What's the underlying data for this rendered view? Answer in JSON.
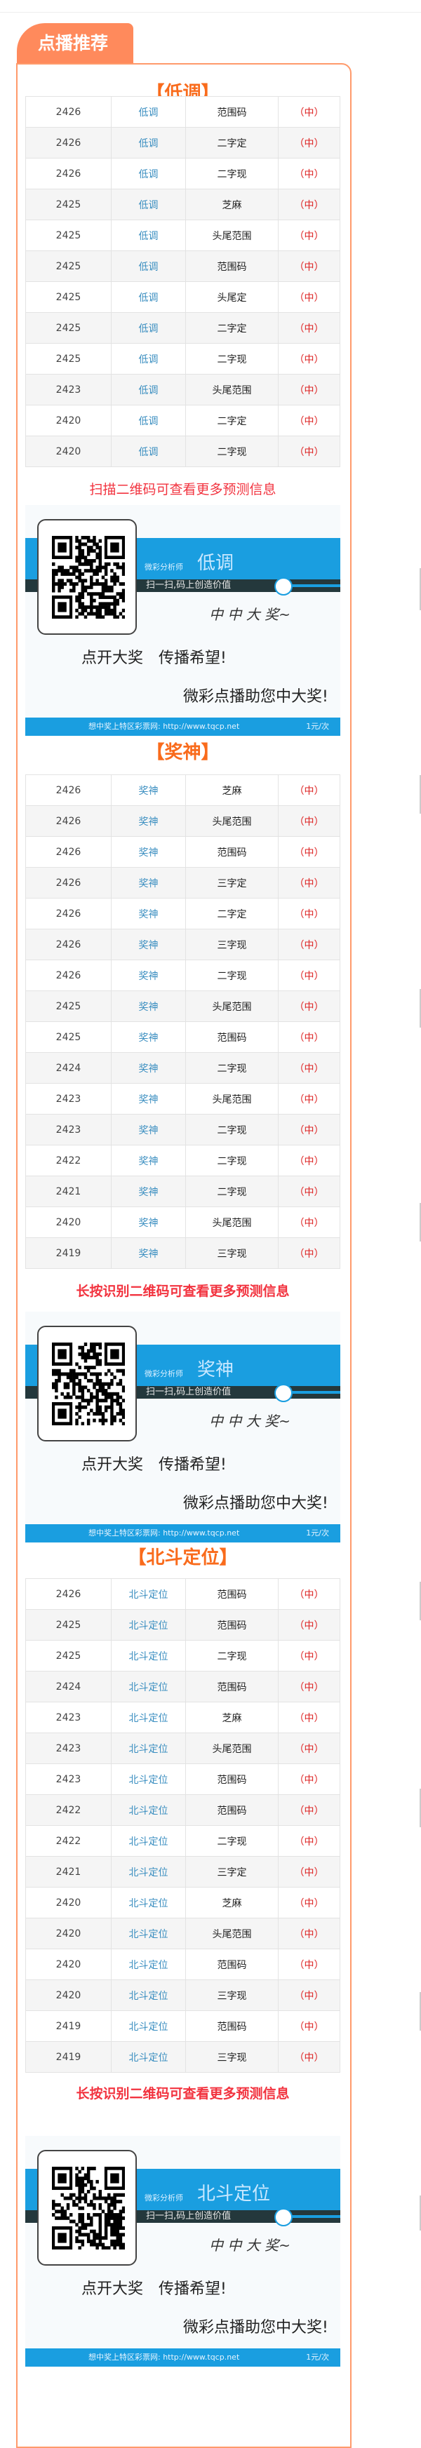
{
  "tab_title": "点播推荐",
  "sections": [
    {
      "title": "【低调】",
      "caption": "扫描二维码可查看更多预测信息",
      "rows": [
        [
          "2426",
          "低调",
          "范围码",
          "（中）"
        ],
        [
          "2426",
          "低调",
          "二字定",
          "（中）"
        ],
        [
          "2426",
          "低调",
          "二字现",
          "（中）"
        ],
        [
          "2425",
          "低调",
          "芝麻",
          "（中）"
        ],
        [
          "2425",
          "低调",
          "头尾范围",
          "（中）"
        ],
        [
          "2425",
          "低调",
          "范围码",
          "（中）"
        ],
        [
          "2425",
          "低调",
          "头尾定",
          "（中）"
        ],
        [
          "2425",
          "低调",
          "二字定",
          "（中）"
        ],
        [
          "2425",
          "低调",
          "二字现",
          "（中）"
        ],
        [
          "2423",
          "低调",
          "头尾范围",
          "（中）"
        ],
        [
          "2420",
          "低调",
          "二字定",
          "（中）"
        ],
        [
          "2420",
          "低调",
          "二字现",
          "（中）"
        ]
      ],
      "banner": {
        "analyst_label": "微彩分析师",
        "analyst_name": "低调"
      }
    },
    {
      "title": "【奖神】",
      "caption": "长按识别二维码可查看更多预测信息",
      "rows": [
        [
          "2426",
          "奖神",
          "芝麻",
          "（中）"
        ],
        [
          "2426",
          "奖神",
          "头尾范围",
          "（中）"
        ],
        [
          "2426",
          "奖神",
          "范围码",
          "（中）"
        ],
        [
          "2426",
          "奖神",
          "三字定",
          "（中）"
        ],
        [
          "2426",
          "奖神",
          "二字定",
          "（中）"
        ],
        [
          "2426",
          "奖神",
          "三字现",
          "（中）"
        ],
        [
          "2426",
          "奖神",
          "二字现",
          "（中）"
        ],
        [
          "2425",
          "奖神",
          "头尾范围",
          "（中）"
        ],
        [
          "2425",
          "奖神",
          "范围码",
          "（中）"
        ],
        [
          "2424",
          "奖神",
          "二字现",
          "（中）"
        ],
        [
          "2423",
          "奖神",
          "头尾范围",
          "（中）"
        ],
        [
          "2423",
          "奖神",
          "二字现",
          "（中）"
        ],
        [
          "2422",
          "奖神",
          "二字现",
          "（中）"
        ],
        [
          "2421",
          "奖神",
          "二字现",
          "（中）"
        ],
        [
          "2420",
          "奖神",
          "头尾范围",
          "（中）"
        ],
        [
          "2419",
          "奖神",
          "三字现",
          "（中）"
        ]
      ],
      "banner": {
        "analyst_label": "微彩分析师",
        "analyst_name": "奖神"
      }
    },
    {
      "title": "【北斗定位】",
      "caption": "长按识别二维码可查看更多预测信息",
      "rows": [
        [
          "2426",
          "北斗定位",
          "范围码",
          "（中）"
        ],
        [
          "2425",
          "北斗定位",
          "范围码",
          "（中）"
        ],
        [
          "2425",
          "北斗定位",
          "二字现",
          "（中）"
        ],
        [
          "2424",
          "北斗定位",
          "范围码",
          "（中）"
        ],
        [
          "2423",
          "北斗定位",
          "芝麻",
          "（中）"
        ],
        [
          "2423",
          "北斗定位",
          "头尾范围",
          "（中）"
        ],
        [
          "2423",
          "北斗定位",
          "范围码",
          "（中）"
        ],
        [
          "2422",
          "北斗定位",
          "范围码",
          "（中）"
        ],
        [
          "2422",
          "北斗定位",
          "二字现",
          "（中）"
        ],
        [
          "2421",
          "北斗定位",
          "三字定",
          "（中）"
        ],
        [
          "2420",
          "北斗定位",
          "芝麻",
          "（中）"
        ],
        [
          "2420",
          "北斗定位",
          "头尾范围",
          "（中）"
        ],
        [
          "2420",
          "北斗定位",
          "范围码",
          "（中）"
        ],
        [
          "2420",
          "北斗定位",
          "三字现",
          "（中）"
        ],
        [
          "2419",
          "北斗定位",
          "范围码",
          "（中）"
        ],
        [
          "2419",
          "北斗定位",
          "三字现",
          "（中）"
        ]
      ],
      "banner": {
        "analyst_label": "微彩分析师",
        "analyst_name": "北斗定位"
      }
    }
  ],
  "banner_common": {
    "scan_text": "扫一扫,码上创造价值",
    "win_text": "中 中 大 奖~",
    "slogan1": "点开大奖　传播希望!",
    "slogan2": "微彩点播助您中大奖!",
    "footer_site": "想中奖上特区彩票网: http://www.tqcp.net",
    "footer_price": "1元/次"
  },
  "colors": {
    "accent": "#ff8a5c",
    "title": "#f96b1c",
    "caption": "#f2333f",
    "name": "#3a8ec0",
    "result": "#dd2222",
    "banner_blue": "#1a9ee0"
  }
}
